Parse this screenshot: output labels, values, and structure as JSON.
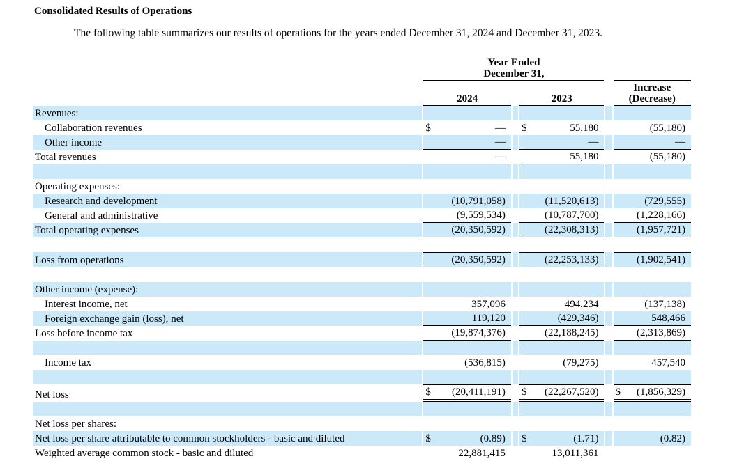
{
  "doc": {
    "title": "Consolidated Results of Operations",
    "intro": "The following table summarizes our results of operations for the years ended December 31, 2024 and December 31, 2023."
  },
  "colors": {
    "row_highlight": "#cce9fa",
    "rule": "#000000",
    "text": "#000000"
  },
  "table": {
    "header": {
      "year_ended_line1": "Year Ended",
      "year_ended_line2": "December 31,",
      "col_2024": "2024",
      "col_2023": "2023",
      "increase_line1": "Increase",
      "increase_line2": "(Decrease)"
    },
    "column_order": [
      "2024",
      "2023",
      "increase_decrease"
    ],
    "rows": [
      {
        "label": "Revenues:",
        "indent": false,
        "shaded": true,
        "rule": "",
        "cells": [
          {
            "cur": "",
            "val": ""
          },
          {
            "cur": "",
            "val": ""
          },
          {
            "cur": "",
            "val": ""
          }
        ]
      },
      {
        "label": "Collaboration revenues",
        "indent": true,
        "shaded": false,
        "rule": "",
        "cells": [
          {
            "cur": "$",
            "val": "—"
          },
          {
            "cur": "$",
            "val": "55,180"
          },
          {
            "cur": "",
            "val": "(55,180)"
          }
        ]
      },
      {
        "label": "Other income",
        "indent": true,
        "shaded": true,
        "rule": "bottom",
        "cells": [
          {
            "cur": "",
            "val": "—"
          },
          {
            "cur": "",
            "val": "—"
          },
          {
            "cur": "",
            "val": "—"
          }
        ]
      },
      {
        "label": "Total revenues",
        "indent": false,
        "shaded": false,
        "rule": "bottom",
        "cells": [
          {
            "cur": "",
            "val": "—"
          },
          {
            "cur": "",
            "val": "55,180"
          },
          {
            "cur": "",
            "val": "(55,180)"
          }
        ]
      },
      {
        "label": "",
        "indent": false,
        "shaded": true,
        "rule": "",
        "cells": [
          {
            "cur": "",
            "val": ""
          },
          {
            "cur": "",
            "val": ""
          },
          {
            "cur": "",
            "val": ""
          }
        ]
      },
      {
        "label": "Operating expenses:",
        "indent": false,
        "shaded": false,
        "rule": "",
        "cells": [
          {
            "cur": "",
            "val": ""
          },
          {
            "cur": "",
            "val": ""
          },
          {
            "cur": "",
            "val": ""
          }
        ]
      },
      {
        "label": "Research and development",
        "indent": true,
        "shaded": true,
        "rule": "",
        "cells": [
          {
            "cur": "",
            "val": "(10,791,058)"
          },
          {
            "cur": "",
            "val": "(11,520,613)"
          },
          {
            "cur": "",
            "val": "(729,555)"
          }
        ]
      },
      {
        "label": "General and administrative",
        "indent": true,
        "shaded": false,
        "rule": "bottom",
        "cells": [
          {
            "cur": "",
            "val": "(9,559,534)"
          },
          {
            "cur": "",
            "val": "(10,787,700)"
          },
          {
            "cur": "",
            "val": "(1,228,166)"
          }
        ]
      },
      {
        "label": "Total operating expenses",
        "indent": false,
        "shaded": true,
        "rule": "bottom",
        "cells": [
          {
            "cur": "",
            "val": "(20,350,592)"
          },
          {
            "cur": "",
            "val": "(22,308,313)"
          },
          {
            "cur": "",
            "val": "(1,957,721)"
          }
        ]
      },
      {
        "label": "",
        "indent": false,
        "shaded": false,
        "rule": "",
        "cells": [
          {
            "cur": "",
            "val": ""
          },
          {
            "cur": "",
            "val": ""
          },
          {
            "cur": "",
            "val": ""
          }
        ]
      },
      {
        "label": "Loss from operations",
        "indent": false,
        "shaded": true,
        "rule": "top-bottom",
        "cells": [
          {
            "cur": "",
            "val": "(20,350,592)"
          },
          {
            "cur": "",
            "val": "(22,253,133)"
          },
          {
            "cur": "",
            "val": "(1,902,541)"
          }
        ]
      },
      {
        "label": "",
        "indent": false,
        "shaded": false,
        "rule": "",
        "cells": [
          {
            "cur": "",
            "val": ""
          },
          {
            "cur": "",
            "val": ""
          },
          {
            "cur": "",
            "val": ""
          }
        ]
      },
      {
        "label": "Other income (expense):",
        "indent": false,
        "shaded": true,
        "rule": "",
        "cells": [
          {
            "cur": "",
            "val": ""
          },
          {
            "cur": "",
            "val": ""
          },
          {
            "cur": "",
            "val": ""
          }
        ]
      },
      {
        "label": "Interest income, net",
        "indent": true,
        "shaded": false,
        "rule": "",
        "cells": [
          {
            "cur": "",
            "val": "357,096"
          },
          {
            "cur": "",
            "val": "494,234"
          },
          {
            "cur": "",
            "val": "(137,138)"
          }
        ]
      },
      {
        "label": "Foreign exchange gain (loss), net",
        "indent": true,
        "shaded": true,
        "rule": "bottom",
        "cells": [
          {
            "cur": "",
            "val": "119,120"
          },
          {
            "cur": "",
            "val": "(429,346)"
          },
          {
            "cur": "",
            "val": "548,466"
          }
        ]
      },
      {
        "label": "Loss before income tax",
        "indent": false,
        "shaded": false,
        "rule": "bottom",
        "cells": [
          {
            "cur": "",
            "val": "(19,874,376)"
          },
          {
            "cur": "",
            "val": "(22,188,245)"
          },
          {
            "cur": "",
            "val": "(2,313,869)"
          }
        ]
      },
      {
        "label": "",
        "indent": false,
        "shaded": true,
        "rule": "",
        "cells": [
          {
            "cur": "",
            "val": ""
          },
          {
            "cur": "",
            "val": ""
          },
          {
            "cur": "",
            "val": ""
          }
        ]
      },
      {
        "label": "Income tax",
        "indent": true,
        "shaded": false,
        "rule": "",
        "cells": [
          {
            "cur": "",
            "val": "(536,815)"
          },
          {
            "cur": "",
            "val": "(79,275)"
          },
          {
            "cur": "",
            "val": "457,540"
          }
        ]
      },
      {
        "label": "",
        "indent": false,
        "shaded": true,
        "rule": "",
        "cells": [
          {
            "cur": "",
            "val": ""
          },
          {
            "cur": "",
            "val": ""
          },
          {
            "cur": "",
            "val": ""
          }
        ]
      },
      {
        "label": "Net loss",
        "indent": false,
        "shaded": false,
        "rule": "top-double-bottom",
        "cells": [
          {
            "cur": "$",
            "val": "(20,411,191)"
          },
          {
            "cur": "$",
            "val": "(22,267,520)"
          },
          {
            "cur": "$",
            "val": "(1,856,329)"
          }
        ]
      },
      {
        "label": "",
        "indent": false,
        "shaded": true,
        "rule": "",
        "cells": [
          {
            "cur": "",
            "val": ""
          },
          {
            "cur": "",
            "val": ""
          },
          {
            "cur": "",
            "val": ""
          }
        ]
      },
      {
        "label": "Net loss per shares:",
        "indent": false,
        "shaded": false,
        "rule": "",
        "cells": [
          {
            "cur": "",
            "val": ""
          },
          {
            "cur": "",
            "val": ""
          },
          {
            "cur": "",
            "val": ""
          }
        ]
      },
      {
        "label": "Net loss per share attributable to common stockholders - basic and diluted",
        "indent": false,
        "shaded": true,
        "rule": "",
        "cells": [
          {
            "cur": "$",
            "val": "(0.89)"
          },
          {
            "cur": "$",
            "val": "(1.71)"
          },
          {
            "cur": "",
            "val": "(0.82)"
          }
        ]
      },
      {
        "label": "Weighted average common stock - basic and diluted",
        "indent": false,
        "shaded": false,
        "rule": "",
        "cells": [
          {
            "cur": "",
            "val": "22,881,415"
          },
          {
            "cur": "",
            "val": "13,011,361"
          },
          {
            "cur": "",
            "val": ""
          }
        ]
      }
    ]
  }
}
